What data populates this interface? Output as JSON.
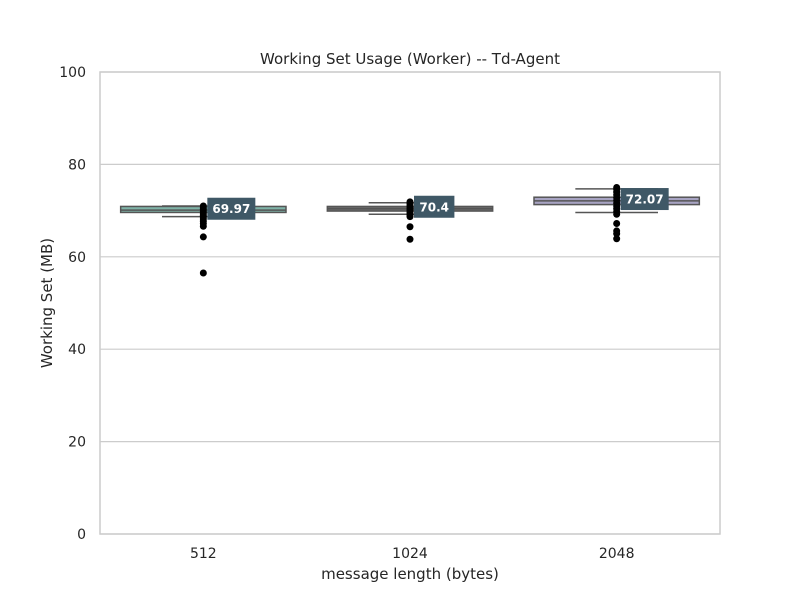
{
  "chart_data": {
    "type": "box",
    "title": "Working Set Usage (Worker) -- Td-Agent",
    "xlabel": "message length (bytes)",
    "ylabel": "Working Set (MB)",
    "ylim": [
      0,
      100
    ],
    "yticks": [
      0,
      20,
      40,
      60,
      80,
      100
    ],
    "grid": "y-only",
    "legend": "none",
    "categories": [
      "512",
      "1024",
      "2048"
    ],
    "boxes": [
      {
        "category": "512",
        "whisker_low": 68.7,
        "q1": 69.6,
        "median": 70.1,
        "q3": 70.9,
        "whisker_high": 71.0,
        "mean": 69.97,
        "mean_label": "69.97",
        "outliers": [
          56.5,
          64.3,
          66.6,
          67.2,
          67.7,
          68.2,
          68.6,
          69.0,
          69.4,
          69.8,
          70.2,
          70.6,
          71.0
        ],
        "color": "#7fb3a7"
      },
      {
        "category": "1024",
        "whisker_low": 69.2,
        "q1": 69.9,
        "median": 70.4,
        "q3": 70.9,
        "whisker_high": 71.7,
        "mean": 70.4,
        "mean_label": "70.4",
        "outliers": [
          63.8,
          66.5,
          68.7,
          69.1,
          69.5,
          69.9,
          70.3,
          70.7,
          71.1,
          71.5,
          71.9
        ],
        "color": "#6b6b6b"
      },
      {
        "category": "2048",
        "whisker_low": 69.6,
        "q1": 71.3,
        "median": 72.1,
        "q3": 72.9,
        "whisker_high": 74.7,
        "mean": 72.07,
        "mean_label": "72.07",
        "outliers": [
          63.9,
          65.0,
          65.6,
          67.2,
          69.2,
          69.8,
          70.4,
          71.0,
          71.6,
          72.2,
          72.8,
          73.4,
          74.0,
          74.6,
          75.0
        ],
        "color": "#a7a3c2"
      }
    ],
    "style": {
      "axis_color": "#cccccc",
      "grid_color": "#cccccc",
      "box_edge_color": "#555555",
      "label_bg_color": "#3f5866",
      "outlier_color": "#000000"
    }
  }
}
